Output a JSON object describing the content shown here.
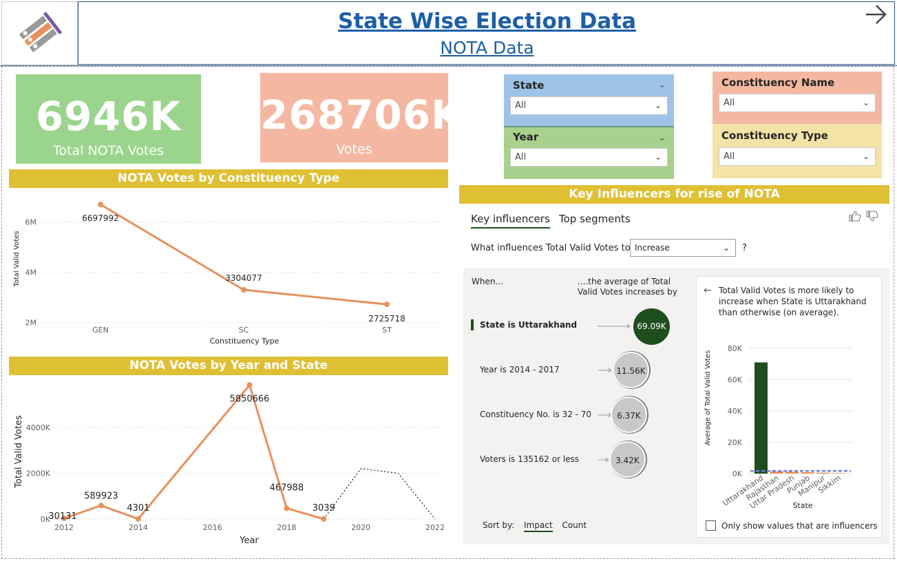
{
  "header": {
    "title": "State Wise Election Data",
    "subtitle": "NOTA Data",
    "logo_icon": "election-commission-logo",
    "nav_icon": "arrow-right-icon"
  },
  "kpis": [
    {
      "value": "6946K",
      "label": "Total NOTA Votes",
      "color": "#9bd48c"
    },
    {
      "value": "268706K",
      "label": "Votes",
      "color": "#f4b8a2"
    }
  ],
  "sections": {
    "by_type": "NOTA Votes by Constituency Type",
    "by_year": "NOTA Votes by Year and State",
    "key_influencers": "Key Influencers for rise of NOTA"
  },
  "slicers": {
    "state": {
      "title": "State",
      "value": "All",
      "color": "#9dc3e6"
    },
    "year": {
      "title": "Year",
      "value": "All",
      "color": "#a9d18e"
    },
    "constituency_name": {
      "title": "Constituency Name",
      "value": "All",
      "color": "#f4b8a2"
    },
    "constituency_type": {
      "title": "Constituency Type",
      "value": "All",
      "color": "#f4e3a6"
    }
  },
  "chart_data": [
    {
      "type": "line",
      "xlabel": "Constituency Type",
      "ylabel": "Total Valid Votes",
      "categories": [
        "GEN",
        "SC",
        "ST"
      ],
      "values": [
        6697992,
        3304077,
        2725718
      ],
      "data_labels": [
        "6697992",
        "3304077",
        "2725718"
      ],
      "yticks": [
        "2M",
        "4M",
        "6M"
      ],
      "ytick_values": [
        2000000,
        4000000,
        6000000
      ],
      "ylim": [
        1800000,
        7000000
      ],
      "grid": true,
      "line_color": "#e8905c"
    },
    {
      "type": "line",
      "xlabel": "Year",
      "ylabel": "Total Valid Votes",
      "x": [
        2012,
        2013,
        2014,
        2017,
        2018,
        2019
      ],
      "values": [
        30131,
        589923,
        4301,
        5850666,
        467988,
        3039
      ],
      "data_labels": [
        "30131",
        "589923",
        "4301",
        "5850666",
        "467988",
        "3039"
      ],
      "forecast_x": [
        2019,
        2020,
        2021,
        2022
      ],
      "forecast_values": [
        3039,
        2200000,
        2000000,
        0
      ],
      "xticks": [
        "2012",
        "2014",
        "2016",
        "2018",
        "2020",
        "2022"
      ],
      "xtick_values": [
        2012,
        2014,
        2016,
        2018,
        2020,
        2022
      ],
      "yticks": [
        "0K",
        "2000K",
        "4000K"
      ],
      "ytick_values": [
        0,
        2000000,
        4000000
      ],
      "xlim": [
        2012,
        2022
      ],
      "ylim": [
        0,
        5950000
      ],
      "grid": true,
      "line_color": "#e8905c"
    },
    {
      "type": "bar",
      "title": "Total Valid Votes is more likely to increase when State is Uttarakhand than otherwise (on average).",
      "xlabel": "State",
      "ylabel": "Average of Total Valid Votes",
      "categories": [
        "Uttarakhand",
        "Rajasthan",
        "Uttar Pradesh",
        "Punjab",
        "Manipur",
        "Sikkim"
      ],
      "values": [
        71000,
        1500,
        1200,
        900,
        600,
        300
      ],
      "average_line": 1700,
      "yticks": [
        "0K",
        "20K",
        "40K",
        "60K",
        "80K"
      ],
      "ytick_values": [
        0,
        20000,
        40000,
        60000,
        80000
      ],
      "ylim": [
        0,
        80000
      ],
      "bar_color_highlight": "#1e4d1e",
      "bar_color_other": "#e8905c",
      "avg_line_color": "#6f7fdc"
    }
  ],
  "key_influencers": {
    "tabs": [
      "Key influencers",
      "Top segments"
    ],
    "question_prefix": "What influences Total Valid Votes to",
    "question_value": "Increase",
    "question_suffix": "?",
    "when_header": "When...",
    "avg_header": "....the average of Total Valid Votes increases by",
    "rows": [
      {
        "label": "State is Uttarakhand",
        "value": "69.09K",
        "selected": true
      },
      {
        "label": "Year is 2014 - 2017",
        "value": "11.56K",
        "selected": false
      },
      {
        "label": "Constituency No. is 32 - 70",
        "value": "6.37K",
        "selected": false
      },
      {
        "label": "Voters is 135162 or less",
        "value": "3.42K",
        "selected": false
      }
    ],
    "sort_label": "Sort by:",
    "sort_options": [
      "Impact",
      "Count"
    ],
    "checkbox_label": "Only show values that are influencers",
    "thumbs_up_icon": "thumbs-up-icon",
    "thumbs_down_icon": "thumbs-down-icon"
  }
}
